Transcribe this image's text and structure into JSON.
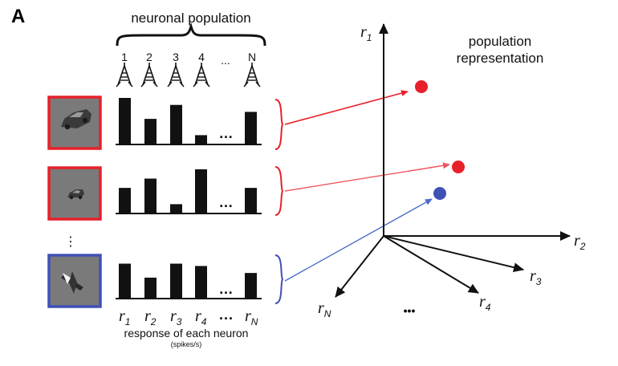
{
  "panel_letter": "A",
  "population_title": "neuronal population",
  "neuron_indices": [
    "1",
    "2",
    "3",
    "4",
    "...",
    "N"
  ],
  "response_label": "response of each neuron",
  "response_units": "(spikes/s)",
  "r_labels": [
    {
      "r": "r",
      "sub": "1"
    },
    {
      "r": "r",
      "sub": "2"
    },
    {
      "r": "r",
      "sub": "3"
    },
    {
      "r": "r",
      "sub": "4"
    },
    {
      "r": "...",
      "sub": ""
    },
    {
      "r": "r",
      "sub": "N"
    }
  ],
  "representation_title_line1": "population",
  "representation_title_line2": "representation",
  "axes": [
    {
      "r": "r",
      "sub": "1"
    },
    {
      "r": "r",
      "sub": "2"
    },
    {
      "r": "r",
      "sub": "3"
    },
    {
      "r": "r",
      "sub": "4"
    },
    {
      "r": "r",
      "sub": "N"
    }
  ],
  "axis_ellipsis": "•••",
  "colors": {
    "red": "#e8202a",
    "blue": "#3f51b5",
    "black": "#111111",
    "stim_bg": "#7a7a7a"
  },
  "stimuli": [
    {
      "name": "car-large",
      "frame_color": "red",
      "responses": [
        1.0,
        0.55,
        0.85,
        0.2,
        0.7
      ]
    },
    {
      "name": "car-small",
      "frame_color": "red",
      "responses": [
        0.55,
        0.75,
        0.2,
        0.95,
        0.55
      ]
    },
    {
      "name": "plane",
      "frame_color": "blue",
      "responses": [
        0.75,
        0.45,
        0.75,
        0.7,
        0.55
      ]
    }
  ]
}
